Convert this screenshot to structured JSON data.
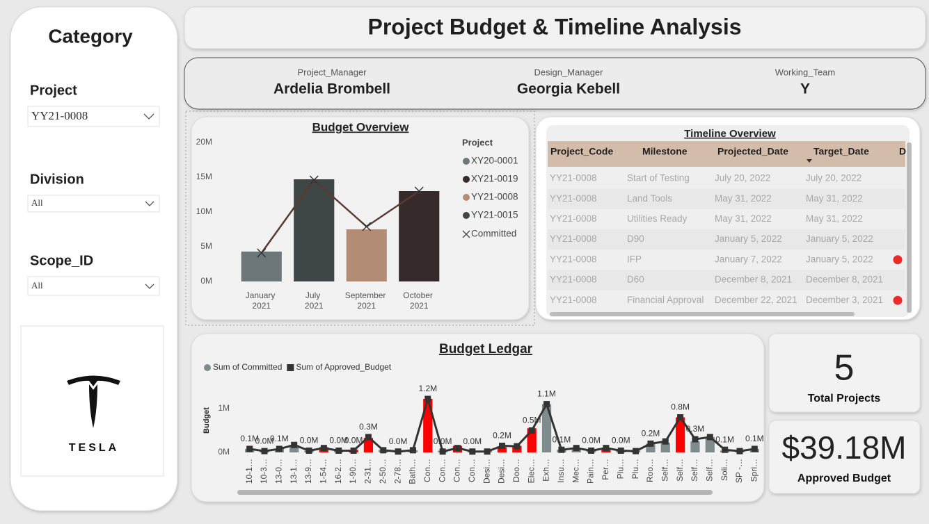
{
  "sidebar": {
    "title": "Category",
    "filters": [
      {
        "label": "Project",
        "value": "YY21-0008"
      },
      {
        "label": "Division",
        "value": "All"
      },
      {
        "label": "Scope_ID",
        "value": "All"
      }
    ],
    "logo_text": "TESLA"
  },
  "header": {
    "title": "Project Budget & Timeline Analysis"
  },
  "people": [
    {
      "label": "Project_Manager",
      "value": "Ardelia Brombell"
    },
    {
      "label": "Design_Manager",
      "value": "Georgia Kebell"
    },
    {
      "label": "Working_Team",
      "value": "Y"
    }
  ],
  "timeline": {
    "title": "Timeline Overview",
    "columns": [
      "Project_Code",
      "Milestone",
      "Projected_Date",
      "Target_Date",
      "D"
    ],
    "rows": [
      [
        "YY21-0008",
        "Start of Testing",
        "July 20, 2022",
        "July 20, 2022"
      ],
      [
        "YY21-0008",
        "Land Tools",
        "May 31, 2022",
        "May 31, 2022"
      ],
      [
        "YY21-0008",
        "Utilities Ready",
        "May 31, 2022",
        "May 31, 2022"
      ],
      [
        "YY21-0008",
        "D90",
        "January 5, 2022",
        "January 5, 2022"
      ],
      [
        "YY21-0008",
        "IFP",
        "January 7, 2022",
        "January 5, 2022"
      ],
      [
        "YY21-0008",
        "D60",
        "December 8, 2021",
        "December 8, 2021"
      ],
      [
        "YY21-0008",
        "Financial Approval",
        "December 22, 2021",
        "December 3, 2021"
      ]
    ],
    "flagged_rows": [
      4,
      6
    ],
    "flag_color": "#ee2b2b"
  },
  "kpis": [
    {
      "value": "5",
      "label": "Total Projects"
    },
    {
      "value": "$39.18M",
      "label": "Approved Budget"
    }
  ],
  "chart_data": [
    {
      "type": "bar",
      "title": "Budget Overview",
      "legend_title": "Project",
      "categories": [
        "January 2021",
        "July 2021",
        "September 2021",
        "October 2021"
      ],
      "ylim": [
        0,
        20
      ],
      "yticks": [
        {
          "value": 0,
          "label": "0M"
        },
        {
          "value": 5,
          "label": "5M"
        },
        {
          "value": 10,
          "label": "10M"
        },
        {
          "value": 15,
          "label": "15M"
        },
        {
          "value": 20,
          "label": "20M"
        }
      ],
      "series": [
        {
          "name": "XY20-0001",
          "color": "#6b7779",
          "values": [
            4.3,
            null,
            null,
            null
          ]
        },
        {
          "name": "XY21-0019",
          "color": "#352929",
          "values": [
            null,
            null,
            null,
            13
          ]
        },
        {
          "name": "YY21-0008",
          "color": "#b28c74",
          "values": [
            null,
            null,
            7.5,
            null
          ]
        },
        {
          "name": "YY21-0015",
          "color": "#3e4646",
          "values": [
            null,
            14.7,
            null,
            null
          ]
        },
        {
          "name": "Committed",
          "type": "line",
          "color": "#5b3a30",
          "values": [
            4.1,
            14.6,
            7.9,
            13
          ]
        }
      ]
    },
    {
      "type": "bar",
      "title": "Budget Ledgar",
      "y_label": "Budget",
      "categories": [
        "10-1…",
        "10-3…",
        "13-0…",
        "13-1…",
        "13-9…",
        "1-54…",
        "16-2…",
        "1-90…",
        "2-31…",
        "2-50…",
        "2-78…",
        "Bath…",
        "Con…",
        "Con…",
        "Con…",
        "Con…",
        "Desi…",
        "Desi…",
        "Doo…",
        "Elec…",
        "Exh…",
        "Insu…",
        "Mec…",
        "Pain…",
        "Per…",
        "Plu…",
        "Plu…",
        "Roo…",
        "Self…",
        "Self…",
        "Self…",
        "Self…",
        "Soli…",
        "SP -…",
        "Spri…"
      ],
      "ylim": [
        0,
        1.6
      ],
      "yticks": [
        {
          "value": 0,
          "label": "0M"
        },
        {
          "value": 1,
          "label": "1M"
        }
      ],
      "series": [
        {
          "name": "Sum of Committed",
          "color": "#7f8c8d",
          "values": [
            0.08,
            0.03,
            0.08,
            0.17,
            0.04,
            0.12,
            0.04,
            0.06,
            0.33,
            0.06,
            0.04,
            0.05,
            1.22,
            0.04,
            0.15,
            0.03,
            0.03,
            0.12,
            0.15,
            0.55,
            1.1,
            0.06,
            0.1,
            0.04,
            0.1,
            0.05,
            0.04,
            0.2,
            0.22,
            0.8,
            0.25,
            0.35,
            0.04,
            0.03,
            0.08
          ],
          "colors": [
            "#7f8c8d",
            "#7f8c8d",
            "#7f8c8d",
            "#7f8c8d",
            "#7f8c8d",
            "#ff0000",
            "#7f8c8d",
            "#ff0000",
            "#ff0000",
            "#7f8c8d",
            "#7f8c8d",
            "#7f8c8d",
            "#ff0000",
            "#7f8c8d",
            "#ff0000",
            "#7f8c8d",
            "#7f8c8d",
            "#ff0000",
            "#ff0000",
            "#ff0000",
            "#7f8c8d",
            "#7f8c8d",
            "#7f8c8d",
            "#7f8c8d",
            "#ff0000",
            "#7f8c8d",
            "#7f8c8d",
            "#7f8c8d",
            "#7f8c8d",
            "#ff0000",
            "#7f8c8d",
            "#7f8c8d",
            "#7f8c8d",
            "#7f8c8d",
            "#7f8c8d"
          ]
        },
        {
          "name": "Sum of Approved_Budget",
          "type": "line",
          "color": "#333333",
          "values": [
            0.08,
            0.03,
            0.08,
            0.17,
            0.04,
            0.1,
            0.04,
            0.04,
            0.35,
            0.05,
            0.02,
            0.05,
            1.22,
            0.02,
            0.1,
            0.02,
            0.02,
            0.15,
            0.14,
            0.5,
            1.1,
            0.06,
            0.1,
            0.04,
            0.1,
            0.04,
            0.03,
            0.2,
            0.25,
            0.8,
            0.3,
            0.35,
            0.06,
            0.03,
            0.08
          ],
          "value_labels": [
            "0.1M",
            "0.0M",
            "0.1M",
            null,
            "0.0M",
            null,
            "0.0M",
            "0.0M",
            "0.3M",
            null,
            "0.0M",
            null,
            "1.2M",
            "0.0M",
            null,
            "0.0M",
            null,
            "0.2M",
            null,
            "0.5M",
            "1.1M",
            "0.1M",
            null,
            "0.0M",
            null,
            "0.0M",
            null,
            "0.2M",
            null,
            "0.8M",
            "0.3M",
            null,
            "0.1M",
            null,
            "0.1M"
          ]
        }
      ]
    }
  ]
}
